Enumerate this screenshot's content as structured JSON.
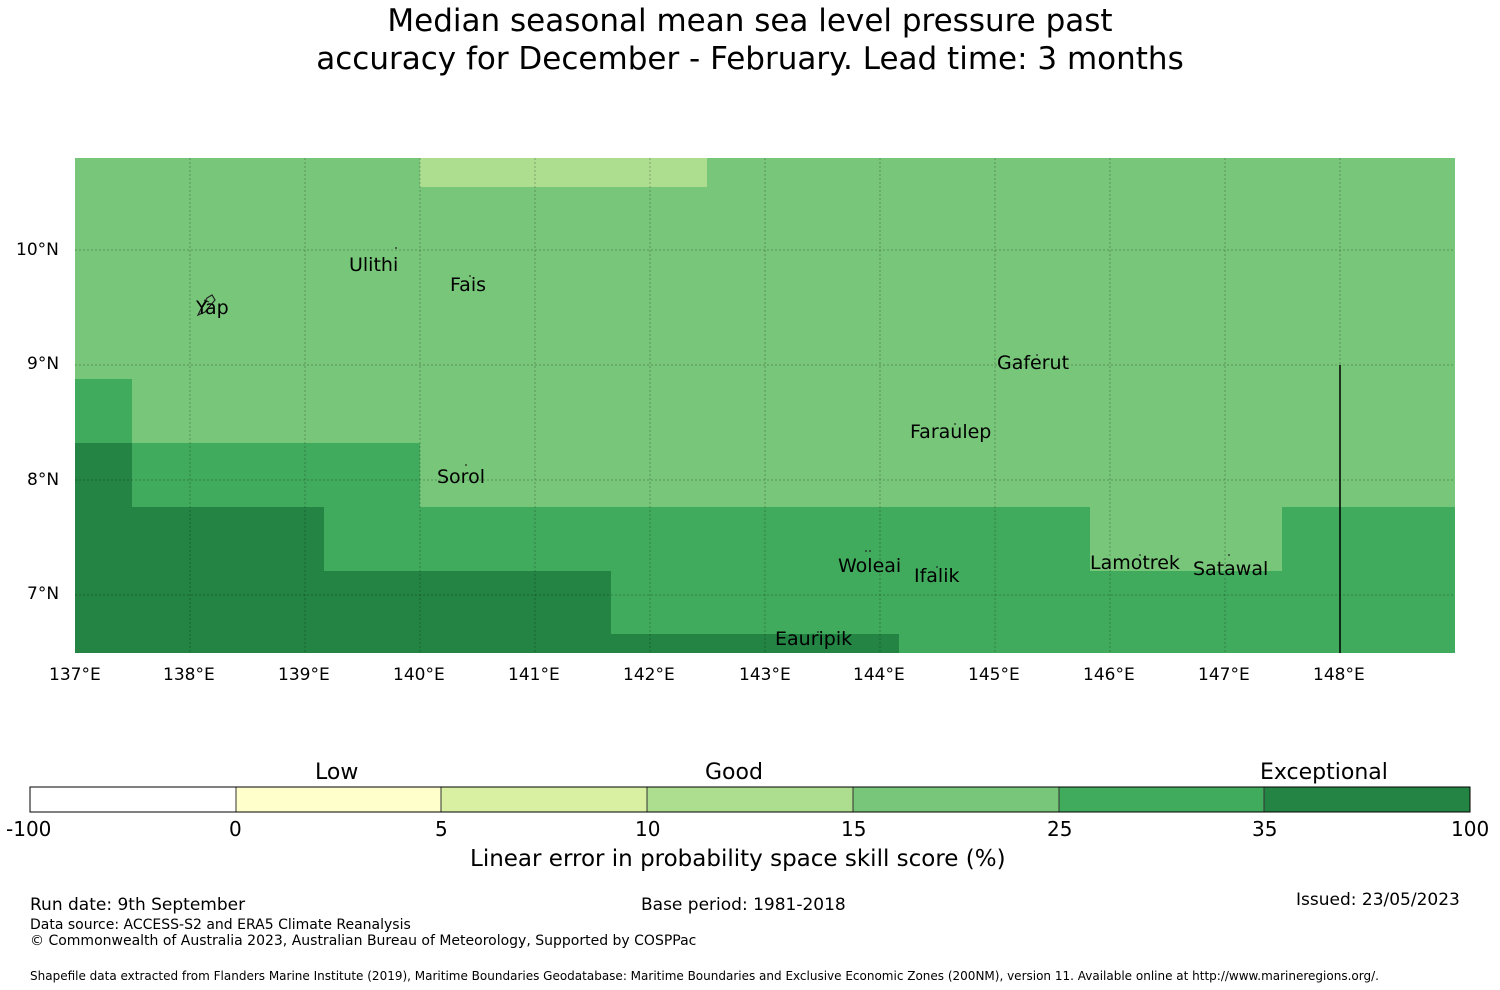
{
  "title": {
    "line1": "Median seasonal mean sea level pressure past",
    "line2": "accuracy for December - February. Lead time: 3 months"
  },
  "colors": {
    "c_low": "#ffffff",
    "c_0_5": "#ffffcc",
    "c_5_10": "#d9f0a3",
    "c_10_15": "#addd8e",
    "c_15_25": "#78c679",
    "c_25_35": "#41ab5d",
    "c_35_100": "#238443"
  },
  "map": {
    "x_axis": {
      "ticks": [
        "137°E",
        "138°E",
        "139°E",
        "140°E",
        "141°E",
        "142°E",
        "143°E",
        "144°E",
        "145°E",
        "146°E",
        "147°E",
        "148°E"
      ]
    },
    "y_axis": {
      "ticks": [
        "10°N",
        "9°N",
        "8°N",
        "7°N"
      ]
    },
    "places": [
      {
        "name": "Ulithi",
        "lon": 139.74,
        "lat": 9.87
      },
      {
        "name": "Fais",
        "lon": 140.52,
        "lat": 9.76
      },
      {
        "name": "Yap",
        "lon": 138.13,
        "lat": 9.52
      },
      {
        "name": "Gaferut",
        "lon": 145.38,
        "lat": 9.22
      },
      {
        "name": "Faraulep",
        "lon": 144.52,
        "lat": 8.6
      },
      {
        "name": "Sorol",
        "lon": 140.39,
        "lat": 8.14
      },
      {
        "name": "Woleai",
        "lon": 143.9,
        "lat": 7.37
      },
      {
        "name": "Ifalik",
        "lon": 144.45,
        "lat": 7.25
      },
      {
        "name": "Lamotrek",
        "lon": 146.33,
        "lat": 7.46
      },
      {
        "name": "Satawal",
        "lon": 147.03,
        "lat": 7.36
      },
      {
        "name": "Eauripik",
        "lon": 143.04,
        "lat": 6.69
      }
    ]
  },
  "colorbar": {
    "categories": [
      "Low",
      "Good",
      "Exceptional"
    ],
    "ticks": [
      "-100",
      "0",
      "5",
      "10",
      "15",
      "25",
      "35",
      "100"
    ],
    "label": "Linear error in probability space skill score (%)"
  },
  "footer": {
    "run_date": "Run date: 9th September",
    "base_period": "Base period: 1981-2018",
    "issued": "Issued: 23/05/2023",
    "data_source": "Data source: ACCESS-S2 and ERA5 Climate Reanalysis",
    "copyright": "© Commonwealth of Australia 2023, Australian Bureau of Meteorology, Supported by COSPPac",
    "shapefile": "Shapefile data extracted from Flanders Marine Institute (2019), Maritime Boundaries Geodatabase: Maritime Boundaries and Exclusive Economic Zones (200NM), version 11. Available online at http://www.marineregions.org/."
  }
}
